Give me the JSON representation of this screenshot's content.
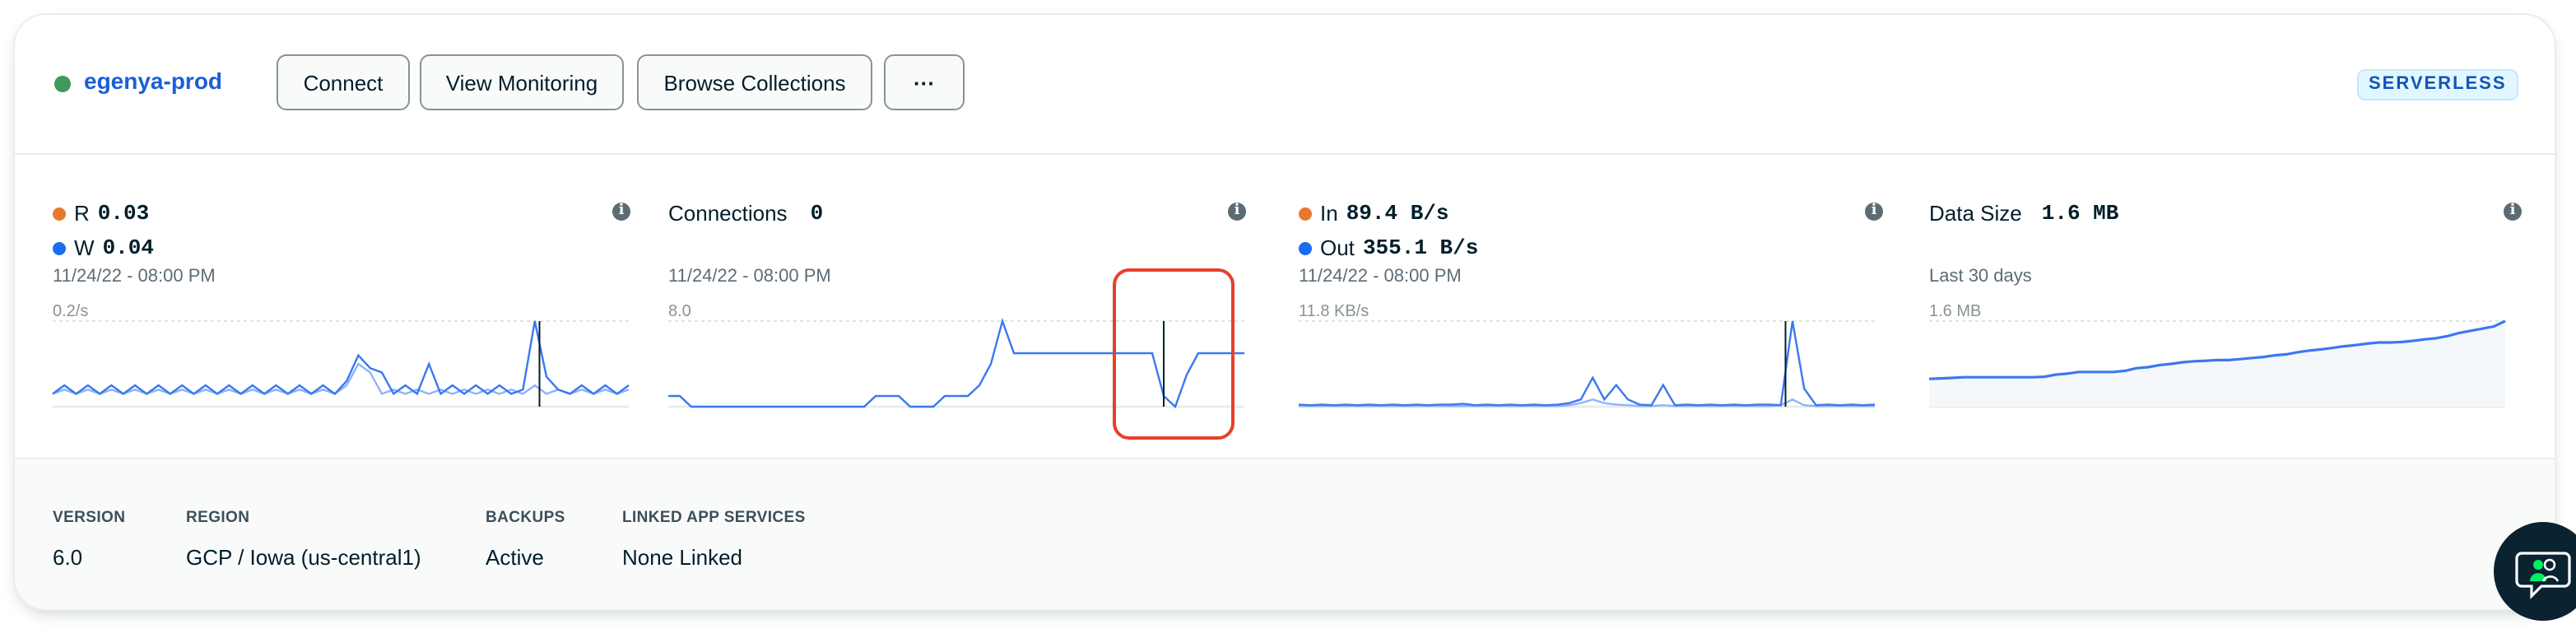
{
  "cluster": {
    "name": "egenya-prod",
    "status_color": "#3d9a5c",
    "tier_badge": "SERVERLESS"
  },
  "toolbar": {
    "connect": "Connect",
    "view_monitoring": "View Monitoring",
    "browse_collections": "Browse Collections",
    "more": "···"
  },
  "metrics": {
    "ops": {
      "r_label": "R",
      "r_value": "0.03",
      "w_label": "W",
      "w_value": "0.04",
      "timestamp": "11/24/22 - 08:00 PM",
      "axis_max": "0.2/s"
    },
    "connections": {
      "label": "Connections",
      "value": "0",
      "timestamp": "11/24/22 - 08:00 PM",
      "axis_max": "8.0"
    },
    "network": {
      "in_label": "In",
      "in_value": "89.4 B/s",
      "out_label": "Out",
      "out_value": "355.1 B/s",
      "timestamp": "11/24/22 - 08:00 PM",
      "axis_max": "11.8 KB/s"
    },
    "data_size": {
      "label": "Data Size",
      "value": "1.6 MB",
      "period": "Last 30 days",
      "axis_max": "1.6 MB"
    },
    "info_icon": "i"
  },
  "colors": {
    "read": "#e8782f",
    "write": "#1a6cf4",
    "line": "#3b78f0",
    "line_light": "#8fb3f7",
    "highlight": "#e83f2b"
  },
  "chart_data": [
    {
      "type": "line",
      "ylim": [
        0,
        0.2
      ],
      "cursor_at": 0.845,
      "series": [
        {
          "name": "W",
          "values": [
            0.03,
            0.05,
            0.03,
            0.05,
            0.03,
            0.05,
            0.03,
            0.05,
            0.03,
            0.05,
            0.03,
            0.05,
            0.03,
            0.05,
            0.03,
            0.05,
            0.03,
            0.05,
            0.03,
            0.05,
            0.03,
            0.05,
            0.03,
            0.05,
            0.03,
            0.06,
            0.12,
            0.09,
            0.08,
            0.03,
            0.05,
            0.03,
            0.1,
            0.03,
            0.05,
            0.03,
            0.05,
            0.03,
            0.05,
            0.03,
            0.04,
            0.2,
            0.07,
            0.04,
            0.03,
            0.05,
            0.03,
            0.05,
            0.03,
            0.05
          ]
        },
        {
          "name": "R",
          "values": [
            0.03,
            0.04,
            0.03,
            0.04,
            0.03,
            0.04,
            0.03,
            0.04,
            0.03,
            0.04,
            0.03,
            0.04,
            0.03,
            0.04,
            0.03,
            0.04,
            0.03,
            0.04,
            0.03,
            0.04,
            0.03,
            0.04,
            0.03,
            0.04,
            0.03,
            0.05,
            0.1,
            0.08,
            0.03,
            0.04,
            0.03,
            0.04,
            0.03,
            0.04,
            0.03,
            0.04,
            0.03,
            0.04,
            0.03,
            0.04,
            0.03,
            0.05,
            0.03,
            0.04,
            0.03,
            0.04,
            0.03,
            0.04,
            0.03,
            0.04
          ]
        }
      ]
    },
    {
      "type": "line",
      "ylim": [
        0,
        8
      ],
      "cursor_at": 0.86,
      "series": [
        {
          "name": "Connections",
          "values": [
            1,
            1,
            0,
            0,
            0,
            0,
            0,
            0,
            0,
            0,
            0,
            0,
            0,
            0,
            0,
            0,
            0,
            0,
            1,
            1,
            1,
            0,
            0,
            0,
            1,
            1,
            1,
            2,
            4,
            8,
            5,
            5,
            5,
            5,
            5,
            5,
            5,
            5,
            5,
            5,
            5,
            5,
            5,
            1,
            0,
            3,
            5,
            5,
            5,
            5,
            5
          ]
        }
      ]
    },
    {
      "type": "line",
      "ylim": [
        0,
        11.8
      ],
      "cursor_at": 0.845,
      "series": [
        {
          "name": "Out",
          "values": [
            0.3,
            0.2,
            0.3,
            0.2,
            0.3,
            0.2,
            0.3,
            0.2,
            0.3,
            0.2,
            0.3,
            0.2,
            0.3,
            0.3,
            0.4,
            0.2,
            0.3,
            0.2,
            0.3,
            0.2,
            0.3,
            0.2,
            0.3,
            0.5,
            1.0,
            4.0,
            1.0,
            3.0,
            1.0,
            0.3,
            0.2,
            3.0,
            0.2,
            0.3,
            0.2,
            0.3,
            0.2,
            0.3,
            0.2,
            0.3,
            0.3,
            0.2,
            11.8,
            2.5,
            0.2,
            0.3,
            0.2,
            0.3,
            0.2,
            0.3
          ]
        },
        {
          "name": "In",
          "values": [
            0.1,
            0.1,
            0.1,
            0.1,
            0.1,
            0.1,
            0.1,
            0.1,
            0.1,
            0.1,
            0.1,
            0.1,
            0.1,
            0.1,
            0.1,
            0.1,
            0.1,
            0.1,
            0.1,
            0.1,
            0.1,
            0.1,
            0.1,
            0.2,
            0.5,
            1.0,
            0.5,
            0.3,
            0.2,
            0.1,
            0.1,
            0.2,
            0.1,
            0.1,
            0.1,
            0.1,
            0.1,
            0.1,
            0.1,
            0.1,
            0.1,
            0.2,
            1.0,
            0.2,
            0.1,
            0.1,
            0.1,
            0.1,
            0.1,
            0.1
          ]
        }
      ]
    },
    {
      "type": "area",
      "ylim": [
        0,
        1.6
      ],
      "series": [
        {
          "name": "Data Size",
          "values": [
            0.52,
            0.53,
            0.54,
            0.55,
            0.55,
            0.55,
            0.55,
            0.55,
            0.55,
            0.55,
            0.56,
            0.6,
            0.62,
            0.65,
            0.65,
            0.65,
            0.65,
            0.67,
            0.72,
            0.74,
            0.78,
            0.8,
            0.83,
            0.85,
            0.86,
            0.87,
            0.87,
            0.89,
            0.91,
            0.93,
            0.96,
            0.98,
            1.02,
            1.05,
            1.07,
            1.1,
            1.13,
            1.15,
            1.18,
            1.2,
            1.2,
            1.21,
            1.23,
            1.26,
            1.28,
            1.32,
            1.38,
            1.42,
            1.46,
            1.5,
            1.6
          ]
        }
      ]
    }
  ],
  "footer": {
    "version_label": "VERSION",
    "version": "6.0",
    "region_label": "REGION",
    "region": "GCP / Iowa (us-central1)",
    "backups_label": "BACKUPS",
    "backups": "Active",
    "linked_label": "LINKED APP SERVICES",
    "linked": "None Linked"
  },
  "chat": {
    "icon": "chat-support-icon"
  }
}
